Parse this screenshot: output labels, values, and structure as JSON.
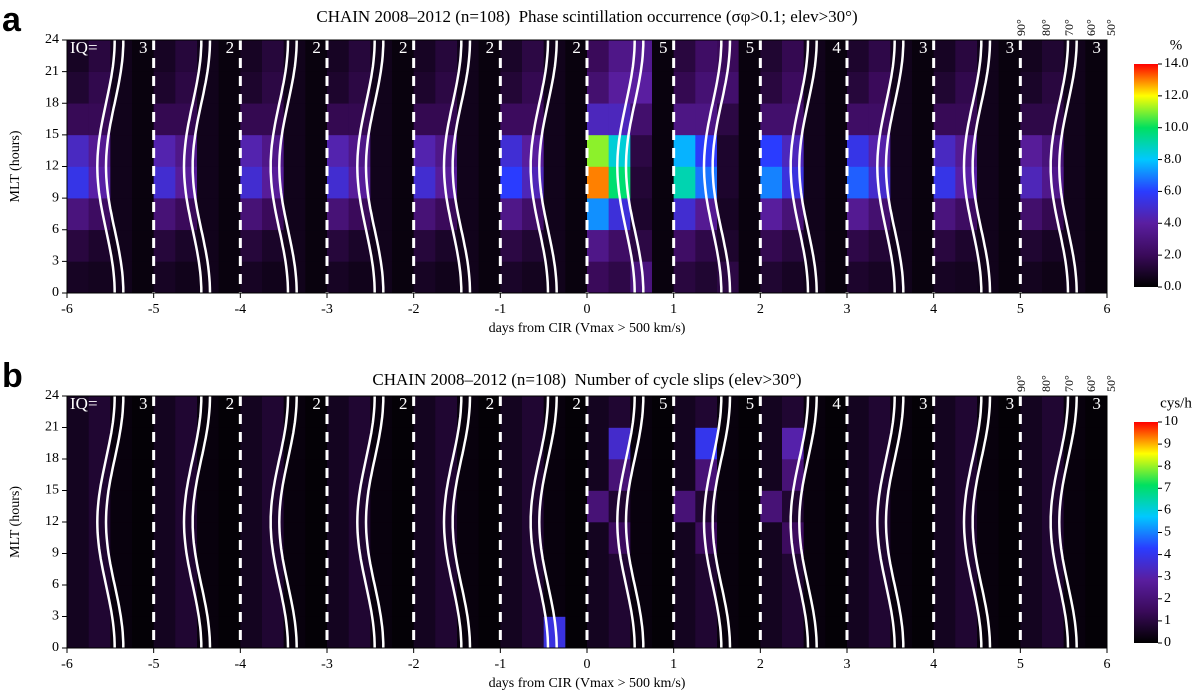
{
  "chart_data": [
    {
      "type": "heatmap",
      "panel_label": "a",
      "title": "CHAIN 2008–2012 (n=108)  Phase scintillation occurrence (σφ>0.1; elev>30°)",
      "xlabel": "days from CIR (Vmax > 500 km/s)",
      "ylabel": "MLT (hours)",
      "xlim": [
        -6,
        6
      ],
      "ylim": [
        0,
        24
      ],
      "xticks": [
        -6,
        -5,
        -4,
        -3,
        -2,
        -1,
        0,
        1,
        2,
        3,
        4,
        5,
        6
      ],
      "yticks": [
        0,
        3,
        6,
        9,
        12,
        15,
        18,
        21,
        24
      ],
      "x_bins": [
        -6,
        -5.75,
        -5.5,
        -5.25,
        -5,
        -4.75,
        -4.5,
        -4.25,
        -4,
        -3.75,
        -3.5,
        -3.25,
        -3,
        -2.75,
        -2.5,
        -2.25,
        -2,
        -1.75,
        -1.5,
        -1.25,
        -1,
        -0.75,
        -0.5,
        -0.25,
        0,
        0.25,
        0.5,
        0.75,
        1,
        1.25,
        1.5,
        1.75,
        2,
        2.25,
        2.5,
        2.75,
        3,
        3.25,
        3.5,
        3.75,
        4,
        4.25,
        4.5,
        4.75,
        5,
        5.25,
        5.5,
        5.75,
        6
      ],
      "y_bins": [
        0,
        3,
        6,
        9,
        12,
        15,
        18,
        21,
        24
      ],
      "z": [
        [
          0.8,
          0.7,
          0.6,
          0.3,
          0.8,
          0.6,
          0.6,
          0.3,
          0.8,
          0.6,
          0.6,
          0.3,
          0.8,
          0.6,
          0.6,
          0.3,
          0.8,
          0.6,
          0.6,
          0.3,
          0.9,
          0.7,
          0.6,
          0.3,
          2.0,
          1.6,
          3.0,
          0.3,
          1.4,
          1.1,
          1.5,
          0.3,
          1.1,
          0.8,
          0.6,
          0.3,
          1.0,
          0.8,
          0.6,
          0.3,
          0.8,
          0.7,
          0.6,
          0.3,
          0.7,
          0.5,
          0.6,
          0.3
        ],
        [
          1.4,
          1.0,
          0.6,
          0.3,
          1.3,
          0.9,
          0.6,
          0.3,
          1.3,
          0.9,
          0.6,
          0.3,
          1.3,
          0.9,
          0.6,
          0.3,
          1.3,
          0.9,
          0.6,
          0.3,
          1.5,
          1.1,
          0.6,
          0.3,
          3.3,
          2.3,
          1.5,
          0.3,
          2.3,
          1.6,
          1.0,
          0.3,
          1.8,
          1.3,
          0.6,
          0.3,
          1.6,
          1.2,
          0.6,
          0.3,
          1.4,
          1.0,
          0.6,
          0.3,
          1.1,
          0.8,
          0.6,
          0.3
        ],
        [
          3.0,
          2.2,
          0.6,
          0.3,
          2.8,
          2.0,
          0.6,
          0.3,
          2.8,
          2.0,
          0.6,
          0.3,
          2.8,
          2.0,
          0.6,
          0.3,
          2.8,
          2.0,
          0.6,
          0.3,
          3.3,
          2.4,
          0.6,
          0.3,
          7.2,
          5.2,
          1.0,
          0.3,
          5.0,
          3.6,
          0.8,
          0.3,
          3.9,
          2.8,
          0.6,
          0.3,
          3.6,
          2.6,
          0.6,
          0.3,
          3.0,
          2.2,
          0.6,
          0.3,
          2.5,
          1.8,
          0.6,
          0.3
        ],
        [
          5.5,
          4.1,
          0.6,
          0.3,
          5.0,
          3.8,
          0.6,
          0.3,
          5.0,
          3.8,
          0.6,
          0.3,
          5.0,
          3.8,
          0.6,
          0.3,
          5.0,
          3.8,
          0.6,
          0.3,
          6.0,
          4.5,
          0.6,
          0.3,
          13.0,
          9.8,
          1.2,
          0.3,
          9.0,
          6.8,
          1.0,
          0.3,
          7.0,
          5.3,
          0.6,
          0.3,
          6.5,
          4.9,
          0.6,
          0.3,
          5.5,
          4.1,
          0.6,
          0.3,
          4.5,
          3.4,
          0.6,
          0.3
        ],
        [
          4.7,
          3.6,
          0.6,
          0.3,
          4.3,
          3.3,
          0.6,
          0.3,
          4.3,
          3.3,
          0.6,
          0.3,
          4.3,
          3.3,
          0.6,
          0.3,
          4.3,
          3.3,
          0.6,
          0.3,
          5.1,
          3.9,
          0.6,
          0.3,
          11.1,
          8.5,
          1.5,
          0.3,
          7.7,
          5.9,
          1.0,
          0.3,
          6.0,
          4.6,
          0.6,
          0.3,
          5.5,
          4.2,
          0.6,
          0.3,
          4.7,
          3.6,
          0.6,
          0.3,
          3.8,
          2.9,
          0.6,
          0.3
        ],
        [
          1.9,
          1.9,
          0.6,
          0.3,
          1.8,
          1.8,
          0.6,
          0.3,
          1.8,
          1.8,
          0.6,
          0.3,
          1.8,
          1.8,
          0.6,
          0.3,
          1.8,
          1.8,
          0.6,
          0.3,
          2.1,
          2.1,
          0.6,
          0.3,
          4.6,
          4.6,
          2.5,
          0.3,
          3.2,
          3.2,
          1.5,
          0.3,
          2.5,
          2.5,
          0.6,
          0.3,
          2.3,
          2.3,
          0.6,
          0.3,
          1.9,
          1.9,
          0.6,
          0.3,
          1.6,
          1.6,
          0.6,
          0.3
        ],
        [
          1.1,
          1.7,
          0.6,
          0.3,
          1.0,
          1.5,
          0.6,
          0.3,
          1.0,
          1.5,
          0.6,
          0.3,
          1.0,
          1.5,
          0.6,
          0.3,
          1.0,
          1.5,
          0.6,
          0.3,
          1.2,
          1.8,
          0.6,
          0.3,
          2.6,
          3.9,
          4.0,
          0.3,
          1.8,
          2.7,
          2.5,
          0.3,
          1.4,
          2.1,
          0.6,
          0.3,
          1.3,
          2.0,
          0.6,
          0.3,
          1.1,
          1.7,
          0.6,
          0.3,
          0.9,
          1.4,
          0.6,
          0.3
        ],
        [
          0.8,
          1.4,
          0.6,
          0.3,
          0.8,
          1.3,
          0.6,
          0.3,
          0.8,
          1.3,
          0.6,
          0.3,
          0.8,
          1.3,
          0.6,
          0.3,
          0.8,
          1.3,
          0.6,
          0.3,
          0.9,
          1.5,
          0.6,
          0.3,
          2.0,
          3.3,
          3.5,
          0.3,
          1.4,
          2.3,
          2.0,
          0.3,
          1.1,
          1.8,
          0.6,
          0.3,
          1.0,
          1.6,
          0.6,
          0.3,
          0.8,
          1.4,
          0.6,
          0.3,
          0.7,
          1.1,
          0.6,
          0.3
        ]
      ],
      "zlim": [
        0,
        14
      ],
      "zlabel": "%",
      "zticks": [
        {
          "value": 0,
          "label": "0.0"
        },
        {
          "value": 2,
          "label": "2.0"
        },
        {
          "value": 4,
          "label": "4.0"
        },
        {
          "value": 6,
          "label": "6.0"
        },
        {
          "value": 8,
          "label": "8.0"
        },
        {
          "value": 10,
          "label": "10.0"
        },
        {
          "value": 12,
          "label": "12.0"
        },
        {
          "value": 14,
          "label": "14.0"
        }
      ],
      "colorscale": [
        "#000000",
        "#3a0a5a",
        "#5a1ea0",
        "#2a3cff",
        "#00c8ff",
        "#00e060",
        "#ffff00",
        "#ff0000"
      ],
      "iq_label": "IQ=",
      "iq": [
        3,
        2,
        2,
        2,
        2,
        2,
        5,
        5,
        4,
        3,
        3,
        3
      ],
      "elevation_labels": [
        "90°",
        "80°",
        "70°",
        "60°",
        "50°"
      ]
    },
    {
      "type": "heatmap",
      "panel_label": "b",
      "title": "CHAIN 2008–2012 (n=108)  Number of cycle slips (elev>30°)",
      "xlabel": "days from CIR (Vmax > 500 km/s)",
      "ylabel": "MLT (hours)",
      "xlim": [
        -6,
        6
      ],
      "ylim": [
        0,
        24
      ],
      "xticks": [
        -6,
        -5,
        -4,
        -3,
        -2,
        -1,
        0,
        1,
        2,
        3,
        4,
        5,
        6
      ],
      "yticks": [
        0,
        3,
        6,
        9,
        12,
        15,
        18,
        21,
        24
      ],
      "x_bins": [
        -6,
        -5.75,
        -5.5,
        -5.25,
        -5,
        -4.75,
        -4.5,
        -4.25,
        -4,
        -3.75,
        -3.5,
        -3.25,
        -3,
        -2.75,
        -2.5,
        -2.25,
        -2,
        -1.75,
        -1.5,
        -1.25,
        -1,
        -0.75,
        -0.5,
        -0.25,
        0,
        0.25,
        0.5,
        0.75,
        1,
        1.25,
        1.5,
        1.75,
        2,
        2.25,
        2.5,
        2.75,
        3,
        3.25,
        3.5,
        3.75,
        4,
        4.25,
        4.5,
        4.75,
        5,
        5.25,
        5.5,
        5.75,
        6
      ],
      "y_bins": [
        0,
        3,
        6,
        9,
        12,
        15,
        18,
        21,
        24
      ],
      "z": [
        [
          0.5,
          0.8,
          0.2,
          0.1,
          0.5,
          0.8,
          0.2,
          0.1,
          0.5,
          0.8,
          0.2,
          0.1,
          0.5,
          0.8,
          0.2,
          0.1,
          0.5,
          0.8,
          0.2,
          0.1,
          0.5,
          0.8,
          3.8,
          0.1,
          0.5,
          0.8,
          0.2,
          0.1,
          0.5,
          0.8,
          0.2,
          0.1,
          0.5,
          0.8,
          0.2,
          0.1,
          0.5,
          0.8,
          0.2,
          0.1,
          0.5,
          0.8,
          0.2,
          0.1,
          0.5,
          0.8,
          0.2,
          0.1
        ],
        [
          0.5,
          0.8,
          0.2,
          0.1,
          0.5,
          0.8,
          0.2,
          0.1,
          0.5,
          0.8,
          0.2,
          0.1,
          0.5,
          0.8,
          0.2,
          0.1,
          0.5,
          0.8,
          0.2,
          0.1,
          0.5,
          0.8,
          0.2,
          0.1,
          0.5,
          0.8,
          0.2,
          0.1,
          0.5,
          0.8,
          0.2,
          0.1,
          0.5,
          0.8,
          0.2,
          0.1,
          0.5,
          0.8,
          0.2,
          0.1,
          0.5,
          0.8,
          0.2,
          0.1,
          0.5,
          0.8,
          0.2,
          0.1
        ],
        [
          0.5,
          0.8,
          0.2,
          0.1,
          0.5,
          0.8,
          0.2,
          0.1,
          0.5,
          0.8,
          0.2,
          0.1,
          0.5,
          0.8,
          0.2,
          0.1,
          0.5,
          0.8,
          0.2,
          0.1,
          0.5,
          0.8,
          0.2,
          0.1,
          0.5,
          0.8,
          0.2,
          0.1,
          0.5,
          0.8,
          0.2,
          0.1,
          0.5,
          0.8,
          0.2,
          0.1,
          0.5,
          0.8,
          0.2,
          0.1,
          0.5,
          0.8,
          0.2,
          0.1,
          0.5,
          0.8,
          0.2,
          0.1
        ],
        [
          0.5,
          0.8,
          0.2,
          0.1,
          0.5,
          0.8,
          0.2,
          0.1,
          0.5,
          0.8,
          0.2,
          0.1,
          0.5,
          0.8,
          0.2,
          0.1,
          0.5,
          0.8,
          0.2,
          0.1,
          0.5,
          0.8,
          0.2,
          0.1,
          0.5,
          1.5,
          0.2,
          0.1,
          0.5,
          1.5,
          0.2,
          0.1,
          0.5,
          1.5,
          0.2,
          0.1,
          0.5,
          0.8,
          0.2,
          0.1,
          0.5,
          0.8,
          0.2,
          0.1,
          0.5,
          0.8,
          0.2,
          0.1
        ],
        [
          0.5,
          0.8,
          0.2,
          0.1,
          0.5,
          0.8,
          0.2,
          0.1,
          0.5,
          0.8,
          0.2,
          0.1,
          0.5,
          0.8,
          0.2,
          0.1,
          0.5,
          0.8,
          0.2,
          0.1,
          0.5,
          0.8,
          0.2,
          0.1,
          2.0,
          0.8,
          0.2,
          0.1,
          2.0,
          0.8,
          0.2,
          0.1,
          2.0,
          0.8,
          0.2,
          0.1,
          0.5,
          0.8,
          0.2,
          0.1,
          0.5,
          0.8,
          0.2,
          0.1,
          0.5,
          0.8,
          0.2,
          0.1
        ],
        [
          0.5,
          0.8,
          0.2,
          0.1,
          0.5,
          0.8,
          0.2,
          0.1,
          0.5,
          0.8,
          0.2,
          0.1,
          0.5,
          0.8,
          0.2,
          0.1,
          0.5,
          0.8,
          0.2,
          0.1,
          0.5,
          0.8,
          0.2,
          0.1,
          0.5,
          2.0,
          0.2,
          0.1,
          0.5,
          2.0,
          0.2,
          0.1,
          0.5,
          2.0,
          0.2,
          0.1,
          0.5,
          0.8,
          0.2,
          0.1,
          0.5,
          0.8,
          0.2,
          0.1,
          0.5,
          0.8,
          0.2,
          0.1
        ],
        [
          0.5,
          0.8,
          0.2,
          0.1,
          0.5,
          0.8,
          0.2,
          0.1,
          0.5,
          0.8,
          0.2,
          0.1,
          0.5,
          0.8,
          0.2,
          0.1,
          0.5,
          0.8,
          0.2,
          0.1,
          0.5,
          0.8,
          0.2,
          0.1,
          0.5,
          3.5,
          0.2,
          0.1,
          0.5,
          4.0,
          0.2,
          0.1,
          0.5,
          3.0,
          0.2,
          0.1,
          0.5,
          0.8,
          0.2,
          0.1,
          0.5,
          0.8,
          0.2,
          0.1,
          0.5,
          0.8,
          0.2,
          0.1
        ],
        [
          0.5,
          0.8,
          0.2,
          0.1,
          0.5,
          0.8,
          0.2,
          0.1,
          0.5,
          0.8,
          0.2,
          0.1,
          0.5,
          0.8,
          0.2,
          0.1,
          0.5,
          0.8,
          0.2,
          0.1,
          0.5,
          0.8,
          0.2,
          0.1,
          0.5,
          0.8,
          0.2,
          0.1,
          0.5,
          0.8,
          0.2,
          0.1,
          0.5,
          0.8,
          0.2,
          0.1,
          0.5,
          0.8,
          0.2,
          0.1,
          0.5,
          0.8,
          0.2,
          0.1,
          0.5,
          0.8,
          0.2,
          0.1
        ]
      ],
      "zlim": [
        0,
        10
      ],
      "zlabel": "cys/h",
      "zticks": [
        0,
        1,
        2,
        3,
        4,
        5,
        6,
        7,
        8,
        9,
        10
      ],
      "colorscale": [
        "#000000",
        "#3a0a5a",
        "#5a1ea0",
        "#2a3cff",
        "#00c8ff",
        "#00e060",
        "#ffff00",
        "#ff0000"
      ],
      "iq_label": "IQ=",
      "iq": [
        3,
        2,
        2,
        2,
        2,
        2,
        5,
        5,
        4,
        3,
        3,
        3
      ],
      "elevation_labels": [
        "90°",
        "80°",
        "70°",
        "60°",
        "50°"
      ]
    }
  ]
}
